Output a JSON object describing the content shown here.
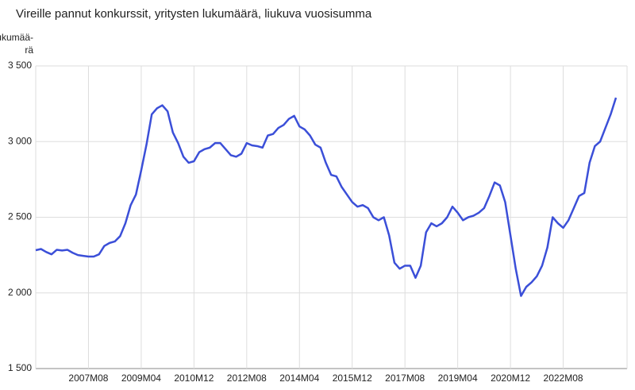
{
  "chart_data": {
    "type": "line",
    "title": "Vireille pannut konkurssit, yritysten lukumäärä, liukuva vuosisumma",
    "ylabel": [
      "Lukumää-",
      "rä"
    ],
    "categories": [
      null,
      null,
      null,
      null,
      null,
      null,
      null,
      null,
      null,
      null,
      "2007M08",
      null,
      null,
      null,
      null,
      null,
      null,
      null,
      null,
      null,
      "2009M04",
      null,
      null,
      null,
      null,
      null,
      null,
      null,
      null,
      null,
      "2010M12",
      null,
      null,
      null,
      null,
      null,
      null,
      null,
      null,
      null,
      "2012M08",
      null,
      null,
      null,
      null,
      null,
      null,
      null,
      null,
      null,
      "2014M04",
      null,
      null,
      null,
      null,
      null,
      null,
      null,
      null,
      null,
      "2015M12",
      null,
      null,
      null,
      null,
      null,
      null,
      null,
      null,
      null,
      "2017M08",
      null,
      null,
      null,
      null,
      null,
      null,
      null,
      null,
      null,
      "2019M04",
      null,
      null,
      null,
      null,
      null,
      null,
      null,
      null,
      null,
      "2020M12",
      null,
      null,
      null,
      null,
      null,
      null,
      null,
      null,
      null,
      "2022M08",
      null,
      null,
      null,
      null,
      null,
      null,
      null,
      null,
      null,
      null
    ],
    "series": [
      {
        "color": "#3b4fd8",
        "values": [
          2282,
          2290,
          2270,
          2255,
          2285,
          2280,
          2285,
          2265,
          2250,
          2245,
          2240,
          2240,
          2255,
          2310,
          2330,
          2340,
          2375,
          2460,
          2580,
          2650,
          2810,
          2980,
          3180,
          3220,
          3240,
          3200,
          3060,
          2990,
          2900,
          2860,
          2870,
          2930,
          2950,
          2960,
          2990,
          2990,
          2950,
          2910,
          2900,
          2920,
          2990,
          2975,
          2970,
          2960,
          3040,
          3050,
          3090,
          3110,
          3150,
          3170,
          3100,
          3080,
          3040,
          2980,
          2960,
          2860,
          2780,
          2770,
          2700,
          2650,
          2600,
          2570,
          2580,
          2560,
          2500,
          2480,
          2500,
          2380,
          2200,
          2160,
          2180,
          2180,
          2100,
          2180,
          2400,
          2460,
          2440,
          2460,
          2500,
          2570,
          2530,
          2480,
          2500,
          2510,
          2530,
          2560,
          2640,
          2730,
          2710,
          2600,
          2380,
          2160,
          1980,
          2040,
          2070,
          2110,
          2180,
          2300,
          2500,
          2460,
          2430,
          2480,
          2560,
          2640,
          2660,
          2860,
          2970,
          3000,
          3090,
          3180,
          3290
        ]
      }
    ],
    "ylim": [
      1500,
      3500
    ],
    "yticks": [
      {
        "value": 1500,
        "label": "1 500"
      },
      {
        "value": 2000,
        "label": "2 000"
      },
      {
        "value": 2500,
        "label": "2 500"
      },
      {
        "value": 3000,
        "label": "3 000"
      },
      {
        "value": 3500,
        "label": "3 500"
      }
    ],
    "grid": true
  }
}
